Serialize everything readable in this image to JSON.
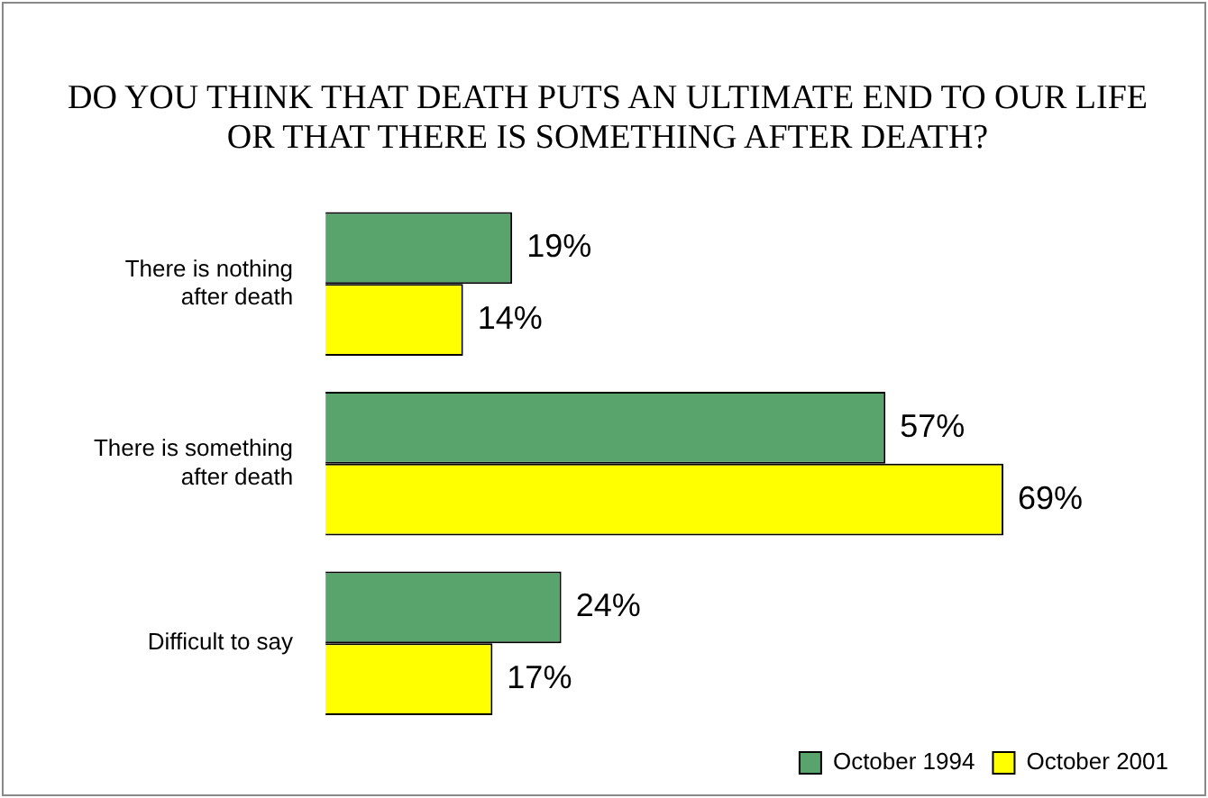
{
  "chart_data": {
    "type": "bar",
    "orientation": "horizontal",
    "title": "DO YOU THINK THAT DEATH PUTS AN ULTIMATE END TO OUR LIFE OR THAT THERE IS SOMETHING AFTER DEATH?",
    "categories": [
      "There is nothing after death",
      "There is something after death",
      "Difficult to say"
    ],
    "series": [
      {
        "name": "October 1994",
        "color": "#58a46c",
        "values": [
          19,
          57,
          24
        ],
        "value_labels": [
          "19%",
          "57%",
          "24%"
        ]
      },
      {
        "name": "October 2001",
        "color": "#ffff00",
        "values": [
          14,
          69,
          17
        ],
        "value_labels": [
          "14%",
          "69%",
          "17%"
        ]
      }
    ],
    "legend": "bottom right",
    "grid": false
  }
}
